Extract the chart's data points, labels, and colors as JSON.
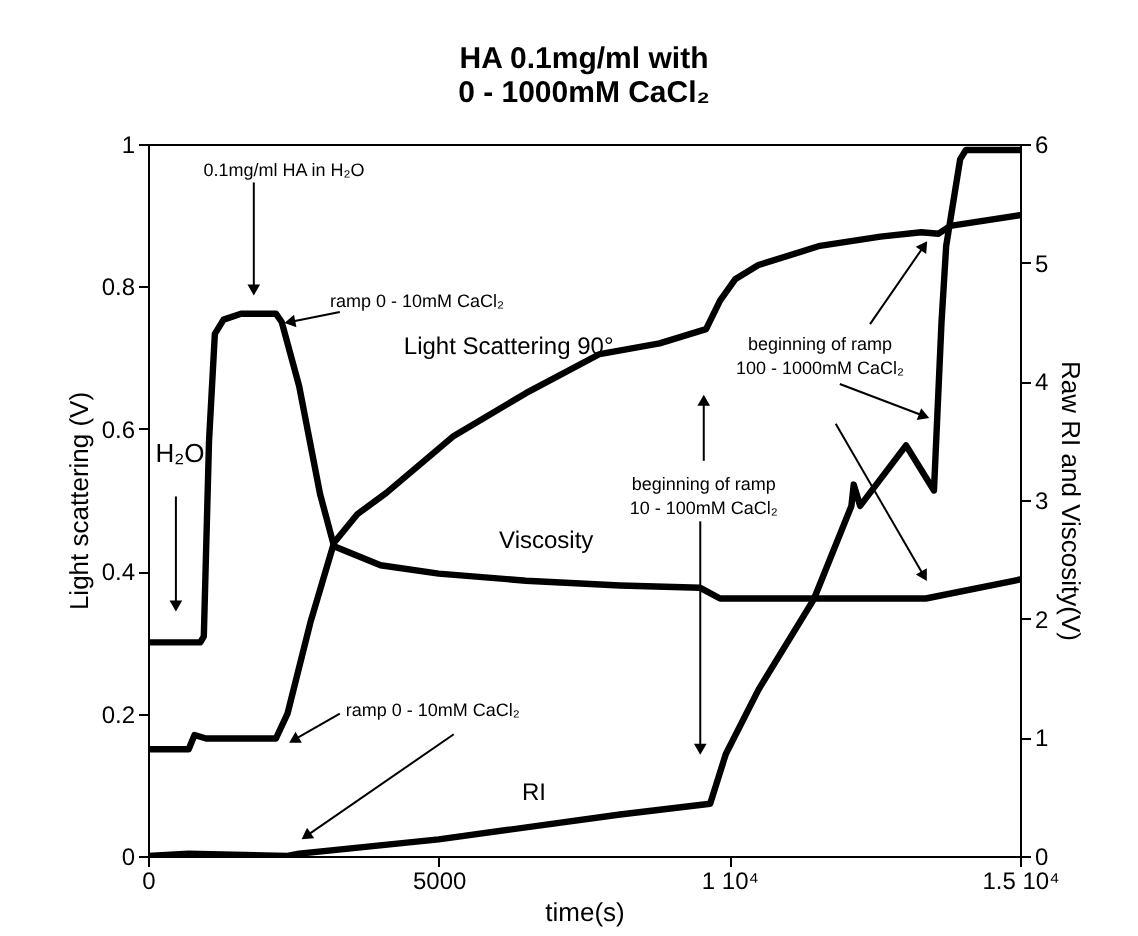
{
  "chart_data": {
    "type": "line",
    "title": "HA 0.1mg/ml with\n0 - 1000mM CaCl₂",
    "xlabel": "time(s)",
    "ylabel": "Light scattering (V)",
    "y2label": "Raw RI and Viscosity(V)",
    "xlim": [
      0,
      15000
    ],
    "xticks": [
      0,
      5000,
      {
        "value": 10000,
        "label": "1 10⁴"
      },
      {
        "value": 15000,
        "label": "1.5 10⁴"
      }
    ],
    "ylim": [
      0,
      1
    ],
    "yticks": [
      0,
      0.2,
      0.4,
      0.6,
      0.8,
      1
    ],
    "y2lim": [
      0,
      6
    ],
    "y2ticks": [
      0,
      1,
      2,
      3,
      4,
      5,
      6
    ],
    "grid": false,
    "series": [
      {
        "name": "Light Scattering 90°",
        "color": "#000000",
        "x": [
          0,
          700,
          800,
          1000,
          2200,
          2400,
          2800,
          3200,
          3600,
          4100,
          5260,
          6500,
          7770,
          8800,
          9600,
          9840,
          10100,
          10500,
          11560,
          12600,
          13300,
          13600,
          13800,
          15000
        ],
        "values": [
          0.15,
          0.15,
          0.17,
          0.165,
          0.165,
          0.2,
          0.33,
          0.44,
          0.48,
          0.51,
          0.59,
          0.65,
          0.705,
          0.72,
          0.74,
          0.78,
          0.81,
          0.83,
          0.857,
          0.87,
          0.876,
          0.874,
          0.885,
          0.9
        ]
      },
      {
        "name": "Viscosity",
        "color": "#000000",
        "axis": "y2",
        "x": [
          0,
          900,
          960,
          1050,
          1150,
          1300,
          1600,
          2200,
          2300,
          2600,
          2960,
          3200,
          4000,
          5000,
          6500,
          8120,
          9500,
          9840,
          13380,
          15000
        ],
        "values": [
          1.8,
          1.8,
          1.85,
          3.5,
          4.4,
          4.52,
          4.57,
          4.57,
          4.5,
          3.96,
          3.05,
          2.61,
          2.45,
          2.38,
          2.32,
          2.28,
          2.26,
          2.17,
          2.17,
          2.33
        ]
      },
      {
        "name": "RI",
        "color": "#000000",
        "axis": "y2",
        "x": [
          0,
          700,
          2400,
          2600,
          5000,
          8120,
          9670,
          9940,
          10500,
          11450,
          12100,
          12140,
          12250,
          13040,
          13520,
          13650,
          13730,
          13970,
          14070,
          15000
        ],
        "values": [
          0,
          0.02,
          0,
          0.02,
          0.14,
          0.35,
          0.44,
          0.86,
          1.4,
          2.16,
          2.95,
          3.13,
          2.95,
          3.46,
          3.08,
          4.5,
          5.14,
          5.87,
          5.95,
          5.95
        ]
      }
    ],
    "annotations": [
      {
        "text": "0.1mg/ml HA in H₂O",
        "x": 1820,
        "y": 0.795
      },
      {
        "text": "ramp 0 - 10mM CaCl₂",
        "x": 2440,
        "y": 0.75
      },
      {
        "text": "H₂O",
        "x": 480,
        "y": 0.351
      },
      {
        "text": "ramp 0 - 10mM CaCl₂",
        "x": 2510,
        "y": 0.163
      },
      {
        "text": "beginning of ramp\n10 - 100mM CaCl₂",
        "x": 9560,
        "y": 0.64
      },
      {
        "text": "beginning of ramp\n100 - 1000mM CaCl₂",
        "x": 13350,
        "y": 0.857
      }
    ]
  }
}
